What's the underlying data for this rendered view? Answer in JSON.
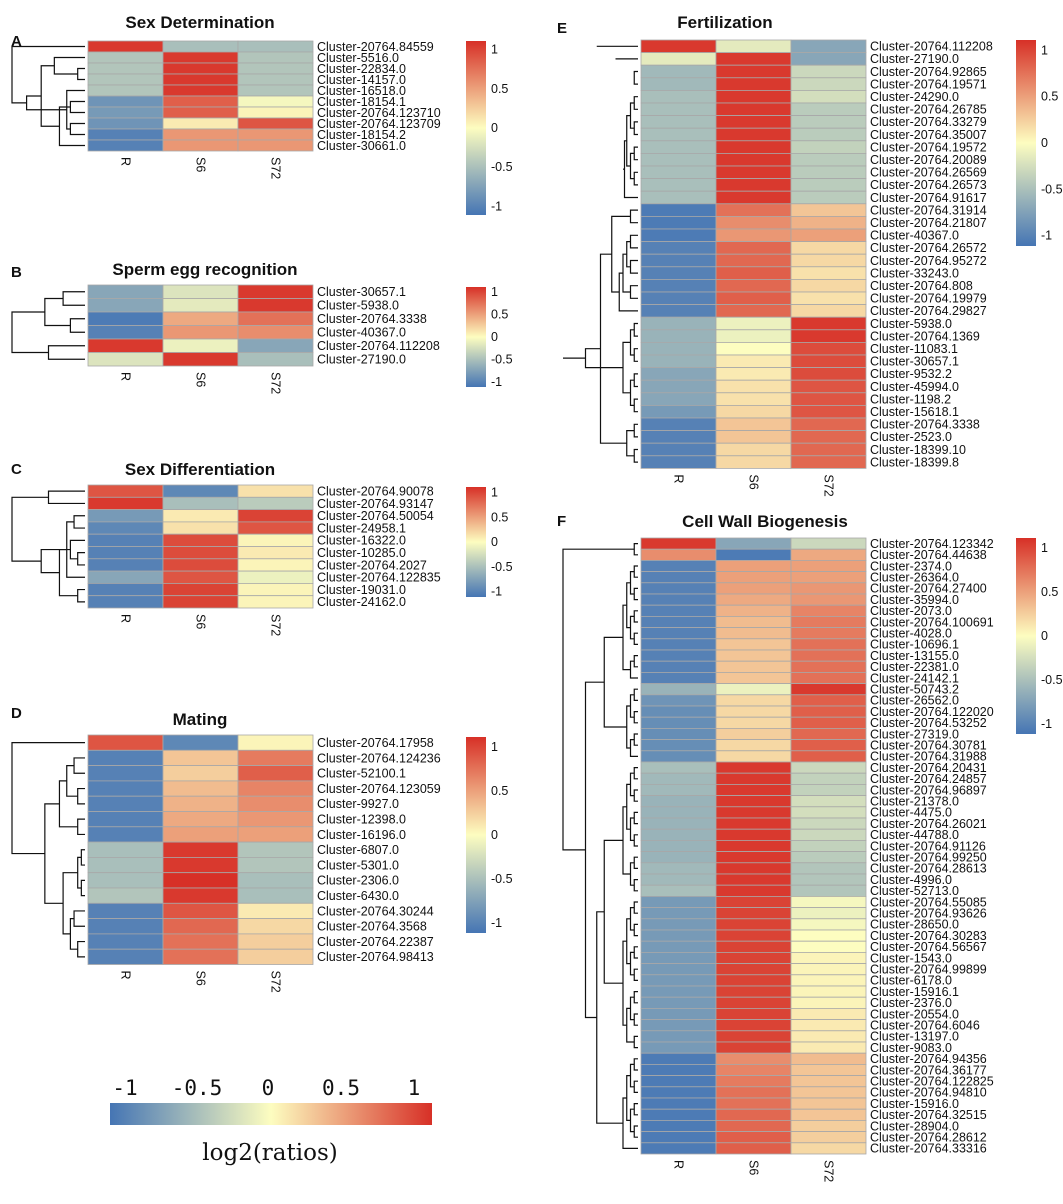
{
  "figure": {
    "legend": {
      "title": "log2(ratios)",
      "ticks": [
        "-1",
        "-0.5",
        "0",
        "0.5",
        "1"
      ]
    }
  },
  "colors": {
    "low": "#4575b4",
    "mid": "#fdfdc0",
    "high": "#d73027"
  },
  "chart_data": [
    {
      "type": "heatmap",
      "panel_label": "A",
      "title": "Sex Determination",
      "columns": [
        "R",
        "S6",
        "S72"
      ],
      "rows": [
        "Cluster-20764.84559",
        "Cluster-5516.0",
        "Cluster-22834.0",
        "Cluster-14157.0",
        "Cluster-16518.0",
        "Cluster-18154.1",
        "Cluster-20764.123710",
        "Cluster-20764.123709",
        "Cluster-18154.2",
        "Cluster-30661.0"
      ],
      "values": [
        [
          1.05,
          -0.5,
          -0.5
        ],
        [
          -0.45,
          1.05,
          -0.45
        ],
        [
          -0.45,
          1.05,
          -0.45
        ],
        [
          -0.45,
          1.05,
          -0.45
        ],
        [
          -0.45,
          1.05,
          -0.45
        ],
        [
          -0.85,
          0.85,
          -0.05
        ],
        [
          -0.8,
          0.85,
          0.05
        ],
        [
          -0.85,
          0.1,
          0.9
        ],
        [
          -1.0,
          0.55,
          0.55
        ],
        [
          -1.0,
          0.55,
          0.55
        ]
      ],
      "scale_ticks": [
        "1",
        "0.5",
        "0",
        "-0.5",
        "-1"
      ],
      "vrange": [
        -1.1,
        1.1
      ]
    },
    {
      "type": "heatmap",
      "panel_label": "B",
      "title": "Sperm egg recognition",
      "columns": [
        "R",
        "S6",
        "S72"
      ],
      "rows": [
        "Cluster-30657.1",
        "Cluster-5938.0",
        "Cluster-20764.3338",
        "Cluster-40367.0",
        "Cluster-20764.112208",
        "Cluster-27190.0"
      ],
      "values": [
        [
          -0.7,
          -0.2,
          1.05
        ],
        [
          -0.7,
          -0.15,
          1.05
        ],
        [
          -1.05,
          0.45,
          0.75
        ],
        [
          -1.0,
          0.55,
          0.6
        ],
        [
          1.05,
          -0.1,
          -0.7
        ],
        [
          -0.2,
          1.05,
          -0.5
        ]
      ],
      "scale_ticks": [
        "1",
        "0.5",
        "0",
        "-0.5",
        "-1"
      ],
      "vrange": [
        -1.1,
        1.1
      ]
    },
    {
      "type": "heatmap",
      "panel_label": "C",
      "title": "Sex Differentiation",
      "columns": [
        "R",
        "S6",
        "S72"
      ],
      "rows": [
        "Cluster-20764.90078",
        "Cluster-20764.93147",
        "Cluster-20764.50054",
        "Cluster-24958.1",
        "Cluster-16322.0",
        "Cluster-10285.0",
        "Cluster-20764.2027",
        "Cluster-20764.122835",
        "Cluster-19031.0",
        "Cluster-24162.0"
      ],
      "values": [
        [
          0.9,
          -0.95,
          0.15
        ],
        [
          1.05,
          -0.5,
          -0.4
        ],
        [
          -0.8,
          0.1,
          1.0
        ],
        [
          -0.95,
          0.15,
          0.9
        ],
        [
          -1.0,
          0.95,
          0.05
        ],
        [
          -1.0,
          0.95,
          0.1
        ],
        [
          -1.0,
          0.95,
          0.05
        ],
        [
          -0.7,
          0.9,
          -0.1
        ],
        [
          -1.0,
          1.0,
          0.05
        ],
        [
          -1.0,
          1.0,
          0.05
        ]
      ],
      "scale_ticks": [
        "1",
        "0.5",
        "0",
        "-0.5",
        "-1"
      ],
      "vrange": [
        -1.1,
        1.1
      ]
    },
    {
      "type": "heatmap",
      "panel_label": "D",
      "title": "Mating",
      "columns": [
        "R",
        "S6",
        "S72"
      ],
      "rows": [
        "Cluster-20764.17958",
        "Cluster-20764.124236",
        "Cluster-52100.1",
        "Cluster-20764.123059",
        "Cluster-9927.0",
        "Cluster-12398.0",
        "Cluster-16196.0",
        "Cluster-6807.0",
        "Cluster-5301.0",
        "Cluster-2306.0",
        "Cluster-6430.0",
        "Cluster-20764.30244",
        "Cluster-20764.3568",
        "Cluster-20764.22387",
        "Cluster-20764.98413"
      ],
      "values": [
        [
          0.9,
          -0.95,
          0.05
        ],
        [
          -1.0,
          0.3,
          0.7
        ],
        [
          -1.0,
          0.25,
          0.85
        ],
        [
          -1.0,
          0.35,
          0.65
        ],
        [
          -1.0,
          0.4,
          0.6
        ],
        [
          -1.0,
          0.45,
          0.55
        ],
        [
          -1.0,
          0.5,
          0.5
        ],
        [
          -0.5,
          1.05,
          -0.45
        ],
        [
          -0.5,
          1.05,
          -0.45
        ],
        [
          -0.5,
          1.1,
          -0.5
        ],
        [
          -0.45,
          1.05,
          -0.5
        ],
        [
          -1.0,
          0.9,
          0.1
        ],
        [
          -1.0,
          0.8,
          0.2
        ],
        [
          -1.0,
          0.75,
          0.25
        ],
        [
          -1.0,
          0.75,
          0.25
        ]
      ],
      "scale_ticks": [
        "1",
        "0.5",
        "0",
        "-0.5",
        "-1"
      ],
      "vrange": [
        -1.1,
        1.1
      ]
    },
    {
      "type": "heatmap",
      "panel_label": "E",
      "title": "Fertilization",
      "columns": [
        "R",
        "S6",
        "S72"
      ],
      "rows": [
        "Cluster-20764.112208",
        "Cluster-27190.0",
        "Cluster-20764.92865",
        "Cluster-20764.19571",
        "Cluster-24290.0",
        "Cluster-20764.26785",
        "Cluster-20764.33279",
        "Cluster-20764.35007",
        "Cluster-20764.19572",
        "Cluster-20764.20089",
        "Cluster-20764.26569",
        "Cluster-20764.26573",
        "Cluster-20764.91617",
        "Cluster-20764.31914",
        "Cluster-20764.21807",
        "Cluster-40367.0",
        "Cluster-20764.26572",
        "Cluster-20764.95272",
        "Cluster-33243.0",
        "Cluster-20764.808",
        "Cluster-20764.19979",
        "Cluster-20764.29827",
        "Cluster-5938.0",
        "Cluster-20764.1369",
        "Cluster-11083.1",
        "Cluster-30657.1",
        "Cluster-9532.2",
        "Cluster-45994.0",
        "Cluster-1198.2",
        "Cluster-15618.1",
        "Cluster-20764.3338",
        "Cluster-2523.0",
        "Cluster-18399.10",
        "Cluster-18399.8"
      ],
      "values": [
        [
          1.05,
          -0.15,
          -0.7
        ],
        [
          -0.15,
          1.05,
          -0.7
        ],
        [
          -0.55,
          1.05,
          -0.3
        ],
        [
          -0.55,
          1.05,
          -0.3
        ],
        [
          -0.5,
          1.05,
          -0.25
        ],
        [
          -0.5,
          1.05,
          -0.4
        ],
        [
          -0.5,
          1.05,
          -0.4
        ],
        [
          -0.5,
          1.05,
          -0.4
        ],
        [
          -0.5,
          1.05,
          -0.35
        ],
        [
          -0.5,
          1.05,
          -0.4
        ],
        [
          -0.5,
          1.05,
          -0.4
        ],
        [
          -0.5,
          1.05,
          -0.4
        ],
        [
          -0.5,
          1.05,
          -0.4
        ],
        [
          -1.05,
          0.75,
          0.3
        ],
        [
          -1.05,
          0.6,
          0.4
        ],
        [
          -1.05,
          0.55,
          0.5
        ],
        [
          -1.0,
          0.8,
          0.2
        ],
        [
          -1.0,
          0.8,
          0.2
        ],
        [
          -1.0,
          0.85,
          0.15
        ],
        [
          -1.0,
          0.8,
          0.2
        ],
        [
          -1.0,
          0.85,
          0.15
        ],
        [
          -1.0,
          0.8,
          0.2
        ],
        [
          -0.6,
          -0.1,
          1.05
        ],
        [
          -0.6,
          -0.1,
          1.05
        ],
        [
          -0.6,
          0.0,
          0.95
        ],
        [
          -0.6,
          0.1,
          0.95
        ],
        [
          -0.7,
          0.1,
          0.95
        ],
        [
          -0.7,
          0.15,
          0.9
        ],
        [
          -0.7,
          0.15,
          0.9
        ],
        [
          -0.8,
          0.2,
          0.9
        ],
        [
          -1.0,
          0.3,
          0.8
        ],
        [
          -1.0,
          0.3,
          0.8
        ],
        [
          -1.0,
          0.2,
          0.8
        ],
        [
          -1.0,
          0.2,
          0.8
        ]
      ],
      "scale_ticks": [
        "1",
        "0.5",
        "0",
        "-0.5",
        "-1"
      ],
      "vrange": [
        -1.1,
        1.1
      ]
    },
    {
      "type": "heatmap",
      "panel_label": "F",
      "title": "Cell Wall Biogenesis",
      "columns": [
        "R",
        "S6",
        "S72"
      ],
      "rows": [
        "Cluster-20764.123342",
        "Cluster-20764.44638",
        "Cluster-2374.0",
        "Cluster-26364.0",
        "Cluster-20764.27400",
        "Cluster-35994.0",
        "Cluster-2073.0",
        "Cluster-20764.100691",
        "Cluster-4028.0",
        "Cluster-10696.1",
        "Cluster-13155.0",
        "Cluster-22381.0",
        "Cluster-24142.1",
        "Cluster-50743.2",
        "Cluster-26562.0",
        "Cluster-20764.122020",
        "Cluster-20764.53252",
        "Cluster-27319.0",
        "Cluster-20764.30781",
        "Cluster-20764.31988",
        "Cluster-20764.20431",
        "Cluster-20764.24857",
        "Cluster-20764.96897",
        "Cluster-21378.0",
        "Cluster-4475.0",
        "Cluster-20764.26021",
        "Cluster-44788.0",
        "Cluster-20764.91126",
        "Cluster-20764.99250",
        "Cluster-20764.28613",
        "Cluster-4996.0",
        "Cluster-52713.0",
        "Cluster-20764.55085",
        "Cluster-20764.93626",
        "Cluster-28650.0",
        "Cluster-20764.30283",
        "Cluster-20764.56567",
        "Cluster-1543.0",
        "Cluster-20764.99899",
        "Cluster-6178.0",
        "Cluster-15916.1",
        "Cluster-2376.0",
        "Cluster-20554.0",
        "Cluster-20764.6046",
        "Cluster-13197.0",
        "Cluster-9083.0",
        "Cluster-20764.94356",
        "Cluster-20764.36177",
        "Cluster-20764.122825",
        "Cluster-20764.94810",
        "Cluster-15916.0",
        "Cluster-20764.32515",
        "Cluster-28904.0",
        "Cluster-20764.28612",
        "Cluster-20764.33316"
      ],
      "values": [
        [
          1.05,
          -0.7,
          -0.3
        ],
        [
          0.6,
          -1.05,
          0.45
        ],
        [
          -1.0,
          0.5,
          0.5
        ],
        [
          -1.0,
          0.5,
          0.5
        ],
        [
          -1.0,
          0.5,
          0.55
        ],
        [
          -1.0,
          0.45,
          0.55
        ],
        [
          -1.0,
          0.4,
          0.65
        ],
        [
          -1.0,
          0.35,
          0.7
        ],
        [
          -1.0,
          0.35,
          0.7
        ],
        [
          -1.0,
          0.3,
          0.75
        ],
        [
          -1.0,
          0.3,
          0.75
        ],
        [
          -1.0,
          0.3,
          0.75
        ],
        [
          -1.0,
          0.3,
          0.75
        ],
        [
          -0.6,
          -0.1,
          1.05
        ],
        [
          -0.85,
          0.2,
          0.85
        ],
        [
          -0.9,
          0.2,
          0.85
        ],
        [
          -0.9,
          0.2,
          0.85
        ],
        [
          -0.9,
          0.25,
          0.8
        ],
        [
          -0.9,
          0.2,
          0.85
        ],
        [
          -0.9,
          0.2,
          0.85
        ],
        [
          -0.5,
          1.05,
          -0.3
        ],
        [
          -0.55,
          1.05,
          -0.35
        ],
        [
          -0.55,
          1.05,
          -0.35
        ],
        [
          -0.6,
          1.05,
          -0.25
        ],
        [
          -0.6,
          1.05,
          -0.25
        ],
        [
          -0.6,
          1.05,
          -0.3
        ],
        [
          -0.6,
          1.05,
          -0.3
        ],
        [
          -0.6,
          1.05,
          -0.35
        ],
        [
          -0.6,
          1.05,
          -0.4
        ],
        [
          -0.55,
          1.05,
          -0.45
        ],
        [
          -0.55,
          1.05,
          -0.45
        ],
        [
          -0.5,
          1.05,
          -0.45
        ],
        [
          -0.8,
          1.0,
          -0.05
        ],
        [
          -0.8,
          1.0,
          -0.1
        ],
        [
          -0.8,
          1.0,
          -0.05
        ],
        [
          -0.8,
          1.0,
          0.0
        ],
        [
          -0.8,
          1.0,
          0.0
        ],
        [
          -0.8,
          1.0,
          0.05
        ],
        [
          -0.8,
          1.0,
          0.05
        ],
        [
          -0.8,
          1.0,
          0.05
        ],
        [
          -0.8,
          1.0,
          0.05
        ],
        [
          -0.8,
          1.0,
          0.05
        ],
        [
          -0.8,
          1.0,
          0.1
        ],
        [
          -0.8,
          1.0,
          0.1
        ],
        [
          -0.8,
          1.0,
          0.1
        ],
        [
          -0.8,
          1.0,
          0.1
        ],
        [
          -1.05,
          0.6,
          0.35
        ],
        [
          -1.05,
          0.65,
          0.3
        ],
        [
          -1.05,
          0.7,
          0.3
        ],
        [
          -1.05,
          0.75,
          0.3
        ],
        [
          -1.05,
          0.75,
          0.3
        ],
        [
          -1.05,
          0.8,
          0.3
        ],
        [
          -1.05,
          0.8,
          0.25
        ],
        [
          -1.05,
          0.85,
          0.25
        ],
        [
          -1.05,
          0.85,
          0.2
        ]
      ],
      "scale_ticks": [
        "1",
        "0.5",
        "0",
        "-0.5",
        "-1"
      ],
      "vrange": [
        -1.1,
        1.1
      ]
    }
  ]
}
